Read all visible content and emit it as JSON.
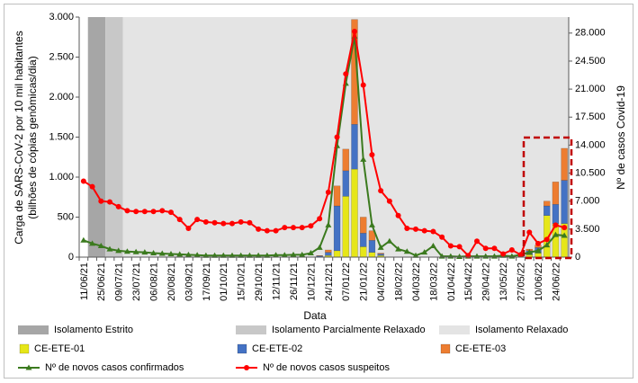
{
  "chart_data": {
    "type": "bar",
    "x_label": "Data",
    "y_label": [
      "Carga de SARS-CoV-2 por 10 mil habitantes",
      "(bilhões de cópias genômicas/dia)"
    ],
    "y2_label": "Nº de casos Covid-19",
    "categories": [
      "11/06/21",
      null,
      "25/06/21",
      null,
      "09/07/21",
      null,
      "23/07/21",
      null,
      "06/08/21",
      null,
      "20/08/21",
      null,
      "03/09/21",
      null,
      "17/09/21",
      null,
      "01/10/21",
      null,
      "15/10/21",
      null,
      "29/10/21",
      null,
      "12/11/21",
      null,
      "26/11/21",
      null,
      "10/12/21",
      null,
      "24/12/21",
      null,
      "07/01/22",
      null,
      "21/01/22",
      null,
      "04/02/22",
      null,
      "18/02/22",
      null,
      "04/03/22",
      null,
      "18/03/22",
      null,
      "01/04/22",
      null,
      "15/04/22",
      null,
      "29/04/22",
      null,
      "13/05/22",
      null,
      "27/05/22",
      null,
      "10/06/22",
      null,
      "24/06/22",
      null
    ],
    "regions": [
      {
        "name": "Isolamento Estrito",
        "color": "#a6a6a6",
        "start": 1,
        "end": 2
      },
      {
        "name": "Isolamento Parcialmente Relaxado",
        "color": "#c8c8c8",
        "start": 3,
        "end": 4
      },
      {
        "name": "Isolamento Relaxado",
        "color": "#e4e4e4",
        "start": 5,
        "end": 55
      }
    ],
    "series": [
      {
        "name": "CE-ETE-01",
        "color": "#e6e619",
        "type": "bar",
        "values": [
          null,
          null,
          null,
          null,
          null,
          null,
          null,
          null,
          null,
          null,
          null,
          null,
          null,
          null,
          null,
          null,
          null,
          null,
          null,
          null,
          null,
          null,
          null,
          null,
          null,
          null,
          null,
          5,
          20,
          80,
          760,
          1100,
          130,
          60,
          20,
          null,
          null,
          null,
          null,
          null,
          null,
          null,
          null,
          null,
          null,
          null,
          null,
          null,
          null,
          null,
          null,
          30,
          50,
          520,
          420,
          420
        ]
      },
      {
        "name": "CE-ETE-02",
        "color": "#4472c4",
        "type": "bar",
        "values": [
          null,
          null,
          null,
          null,
          null,
          null,
          null,
          null,
          null,
          null,
          null,
          null,
          null,
          null,
          null,
          null,
          null,
          null,
          null,
          null,
          null,
          null,
          null,
          null,
          null,
          null,
          null,
          10,
          40,
          560,
          320,
          560,
          170,
          150,
          20,
          null,
          null,
          null,
          null,
          null,
          null,
          null,
          null,
          null,
          null,
          null,
          null,
          null,
          null,
          null,
          null,
          50,
          70,
          120,
          240,
          540
        ]
      },
      {
        "name": "CE-ETE-03",
        "color": "#ed7d31",
        "type": "bar",
        "values": [
          null,
          null,
          null,
          null,
          null,
          null,
          null,
          null,
          null,
          null,
          null,
          null,
          null,
          null,
          null,
          null,
          null,
          null,
          null,
          null,
          null,
          null,
          null,
          null,
          null,
          null,
          null,
          5,
          30,
          250,
          270,
          1310,
          200,
          120,
          10,
          null,
          null,
          null,
          null,
          null,
          null,
          null,
          null,
          null,
          null,
          null,
          null,
          null,
          null,
          null,
          null,
          20,
          30,
          60,
          280,
          400
        ]
      },
      {
        "name": "Nº de novos casos confirmados",
        "color": "#3b7a1e",
        "type": "line",
        "marker": "triangle",
        "axis": "y2",
        "values": [
          2100,
          1700,
          1400,
          1000,
          800,
          700,
          650,
          600,
          500,
          450,
          400,
          350,
          300,
          250,
          200,
          200,
          200,
          200,
          200,
          200,
          200,
          200,
          250,
          250,
          300,
          300,
          500,
          1200,
          4000,
          13900,
          21700,
          27600,
          12200,
          4000,
          1200,
          2000,
          1000,
          700,
          200,
          600,
          1400,
          100,
          100,
          50,
          100,
          100,
          100,
          100,
          200,
          100,
          300,
          600,
          800,
          1500,
          2800,
          2700
        ]
      },
      {
        "name": "Nº de novos casos suspeitos",
        "color": "#ff0000",
        "type": "line",
        "marker": "circle",
        "axis": "y2",
        "values": [
          9500,
          8800,
          7000,
          6900,
          6300,
          5800,
          5700,
          5700,
          5700,
          5800,
          5600,
          4700,
          3600,
          4700,
          4400,
          4300,
          4200,
          4200,
          4400,
          4300,
          3500,
          3300,
          3300,
          3700,
          3700,
          3700,
          3900,
          4800,
          8100,
          15000,
          22900,
          28200,
          21500,
          12800,
          8300,
          7000,
          5200,
          3600,
          3500,
          3300,
          3200,
          2500,
          1400,
          1300,
          200,
          2000,
          1100,
          1100,
          400,
          900,
          300,
          3100,
          1700,
          2200,
          4000,
          3700
        ]
      }
    ],
    "ylim": [
      0,
      3000
    ],
    "yticks": [
      0,
      500,
      {
        "value": 1000,
        "label": "1.000"
      },
      {
        "value": 1500,
        "label": "1.500"
      },
      {
        "value": 2000,
        "label": "2.000"
      },
      {
        "value": 2500,
        "label": "2.500"
      },
      {
        "value": 3000,
        "label": "3.000"
      }
    ],
    "y2lim": [
      0,
      30000
    ],
    "y2ticks": [
      0,
      {
        "value": 3500,
        "label": "3.500"
      },
      {
        "value": 7000,
        "label": "7.000"
      },
      {
        "value": 10500,
        "label": "10.500"
      },
      {
        "value": 14000,
        "label": "14.000"
      },
      {
        "value": 17500,
        "label": "17.500"
      },
      {
        "value": 21000,
        "label": "21.000"
      },
      {
        "value": 24500,
        "label": "24.500"
      },
      {
        "value": 28000,
        "label": "28.000"
      }
    ],
    "legend": "bottom"
  }
}
